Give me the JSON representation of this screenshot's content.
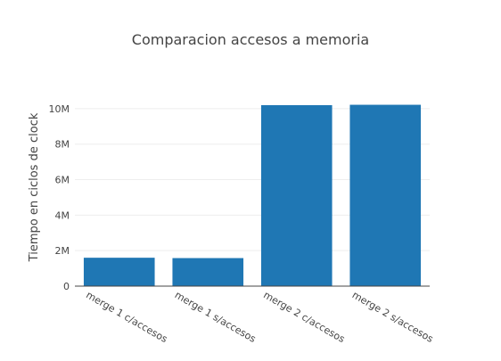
{
  "chart_data": {
    "type": "bar",
    "title": "Comparacion accesos a memoria",
    "xlabel": "",
    "ylabel": "Tiempo en ciclos de clock",
    "categories": [
      "merge 1 c/accesos",
      "merge 1 s/accesos",
      "merge 2 c/accesos",
      "merge 2 s/accesos"
    ],
    "values": [
      1600000,
      1580000,
      10200000,
      10220000
    ],
    "ylim": [
      0,
      10700000
    ],
    "yticks": [
      0,
      2000000,
      4000000,
      6000000,
      8000000,
      10000000
    ],
    "ytick_labels": [
      "0",
      "2M",
      "4M",
      "6M",
      "8M",
      "10M"
    ],
    "bar_color": "#1f77b4",
    "grid": true,
    "legend": "none"
  }
}
